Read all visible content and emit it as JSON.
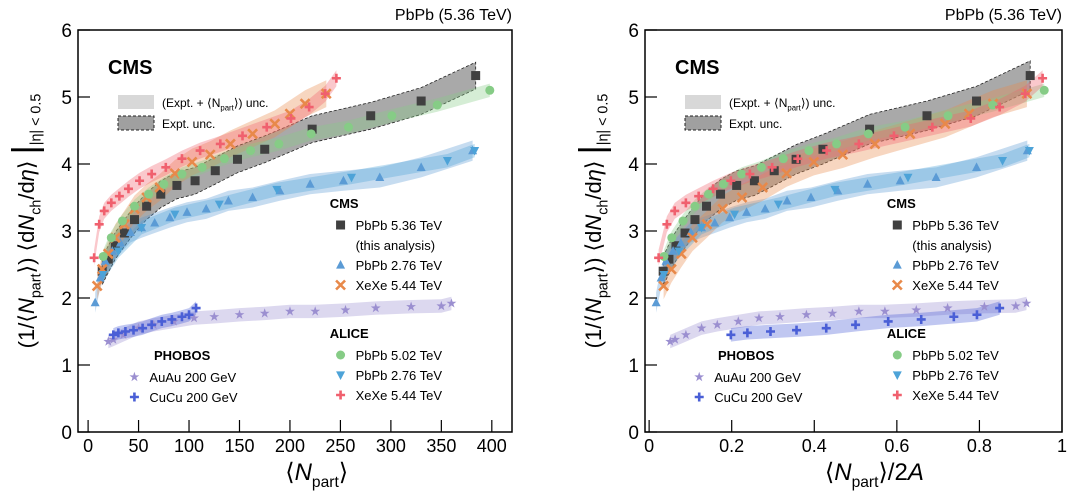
{
  "chart_data": [
    {
      "type": "scatter",
      "title": "PbPb (5.36 TeV)",
      "label": "CMS",
      "xlabel": [
        {
          "t": "⟨"
        },
        {
          "t": "N",
          "style": "italic"
        },
        {
          "t": "part",
          "style": "sub"
        },
        {
          "t": "⟩"
        }
      ],
      "ylabel": [
        {
          "t": "(1/⟨"
        },
        {
          "t": "N",
          "style": "italic"
        },
        {
          "t": "part",
          "style": "sub"
        },
        {
          "t": "⟩) ⟨d"
        },
        {
          "t": "N",
          "style": "italic"
        },
        {
          "t": "ch",
          "style": "sub"
        },
        {
          "t": "/d"
        },
        {
          "t": "η",
          "style": "italic"
        },
        {
          "t": "⟩ "
        },
        {
          "t": "|",
          "style": "big"
        },
        {
          "t": "|η| < 0.5",
          "style": "sub"
        }
      ],
      "band_legend": [
        [
          {
            "t": "(Expt. + ⟨N"
          },
          {
            "t": "part",
            "style": "sub"
          },
          {
            "t": "⟩) unc."
          }
        ],
        [
          {
            "t": "Expt. unc."
          }
        ]
      ],
      "xlim": [
        -10,
        420
      ],
      "xticks": [
        0,
        50,
        100,
        150,
        200,
        250,
        300,
        350,
        400
      ],
      "ylim": [
        0,
        6
      ],
      "yticks": [
        0,
        1,
        2,
        3,
        4,
        5,
        6
      ],
      "series": [
        {
          "name": "PbPb 5.36 TeV",
          "note": "(this analysis)",
          "experiment": "CMS",
          "marker": "square",
          "color": "#404040",
          "uncertainty": 0.2,
          "x": [
            14,
            20,
            27,
            36,
            46,
            58,
            72,
            88,
            106,
            126,
            148,
            175,
            222,
            280,
            330,
            384
          ],
          "values": [
            2.4,
            2.58,
            2.78,
            2.97,
            3.17,
            3.37,
            3.55,
            3.68,
            3.75,
            3.9,
            4.07,
            4.22,
            4.52,
            4.72,
            4.94,
            5.32
          ]
        },
        {
          "name": "PbPb 2.76 TeV",
          "experiment": "CMS",
          "marker": "triangle-up",
          "color": "#5b9bd5",
          "uncertainty": 0.15,
          "x": [
            7,
            12,
            17,
            24,
            32,
            42,
            53,
            66,
            81,
            98,
            117,
            139,
            163,
            190,
            220,
            253,
            289,
            330,
            381
          ],
          "values": [
            1.93,
            2.3,
            2.55,
            2.7,
            2.82,
            2.98,
            3.05,
            3.12,
            3.2,
            3.28,
            3.33,
            3.45,
            3.5,
            3.6,
            3.7,
            3.75,
            3.8,
            3.95,
            4.2
          ]
        },
        {
          "name": "XeXe 5.44 TeV",
          "experiment": "CMS",
          "marker": "x",
          "color": "#e8894a",
          "uncertainty": 0.2,
          "x": [
            9,
            14,
            20,
            27,
            36,
            46,
            58,
            71,
            86,
            103,
            121,
            141,
            163,
            185,
            200,
            215,
            236
          ],
          "values": [
            2.18,
            2.43,
            2.66,
            2.9,
            3.1,
            3.33,
            3.5,
            3.65,
            3.86,
            4.03,
            4.14,
            4.3,
            4.45,
            4.6,
            4.75,
            4.9,
            5.05
          ]
        },
        {
          "name": "PbPb 5.02 TeV",
          "experiment": "ALICE",
          "marker": "circle",
          "color": "#86cc86",
          "uncertainty": 0.1,
          "x": [
            15,
            23,
            34,
            46,
            60,
            75,
            93,
            113,
            135,
            161,
            189,
            221,
            258,
            301,
            346,
            398
          ],
          "values": [
            2.62,
            2.9,
            3.15,
            3.37,
            3.55,
            3.7,
            3.85,
            3.95,
            4.08,
            4.2,
            4.3,
            4.45,
            4.55,
            4.72,
            4.88,
            5.1
          ]
        },
        {
          "name": "PbPb 2.76 TeV",
          "experiment": "ALICE",
          "marker": "triangle-down",
          "color": "#4da3d8",
          "uncertainty": 0.1,
          "x": [
            15,
            30,
            53,
            86,
            130,
            187,
            261,
            356,
            383
          ],
          "values": [
            2.35,
            2.7,
            3.05,
            3.25,
            3.4,
            3.62,
            3.8,
            4.05,
            4.2
          ]
        },
        {
          "name": "XeXe 5.44 TeV",
          "experiment": "ALICE",
          "marker": "plus",
          "color": "#f0606e",
          "uncertainty": 0.12,
          "x": [
            6,
            11,
            16,
            23,
            31,
            40,
            51,
            63,
            77,
            93,
            111,
            131,
            153,
            177,
            201,
            219,
            235,
            246
          ],
          "values": [
            2.6,
            3.1,
            3.3,
            3.42,
            3.52,
            3.63,
            3.75,
            3.85,
            3.95,
            4.08,
            4.2,
            4.3,
            4.42,
            4.55,
            4.68,
            4.85,
            5.05,
            5.28
          ]
        },
        {
          "name": "AuAu 200 GeV",
          "experiment": "PHOBOS",
          "marker": "star",
          "color": "#9b8fd0",
          "uncertainty": 0.1,
          "x": [
            20,
            25,
            35,
            50,
            65,
            85,
            105,
            125,
            150,
            175,
            200,
            225,
            255,
            285,
            320,
            350,
            360
          ],
          "values": [
            1.35,
            1.38,
            1.45,
            1.55,
            1.6,
            1.65,
            1.7,
            1.72,
            1.75,
            1.77,
            1.8,
            1.8,
            1.82,
            1.85,
            1.87,
            1.88,
            1.92
          ]
        },
        {
          "name": "CuCu 200 GeV",
          "experiment": "PHOBOS",
          "marker": "plus",
          "color": "#4a5fd6",
          "uncertainty": 0.1,
          "x": [
            25,
            30,
            37,
            45,
            54,
            63,
            73,
            83,
            93,
            100,
            107
          ],
          "values": [
            1.45,
            1.48,
            1.5,
            1.52,
            1.55,
            1.6,
            1.65,
            1.68,
            1.72,
            1.75,
            1.85
          ]
        }
      ]
    },
    {
      "type": "scatter",
      "title": "PbPb (5.36 TeV)",
      "label": "CMS",
      "xlabel": [
        {
          "t": "⟨"
        },
        {
          "t": "N",
          "style": "italic"
        },
        {
          "t": "part",
          "style": "sub"
        },
        {
          "t": "⟩/2"
        },
        {
          "t": "A",
          "style": "italic"
        }
      ],
      "ylabel": [
        {
          "t": "(1/⟨"
        },
        {
          "t": "N",
          "style": "italic"
        },
        {
          "t": "part",
          "style": "sub"
        },
        {
          "t": "⟩) ⟨d"
        },
        {
          "t": "N",
          "style": "italic"
        },
        {
          "t": "ch",
          "style": "sub"
        },
        {
          "t": "/d"
        },
        {
          "t": "η",
          "style": "italic"
        },
        {
          "t": "⟩ "
        },
        {
          "t": "|",
          "style": "big"
        },
        {
          "t": "|η| < 0.5",
          "style": "sub"
        }
      ],
      "band_legend": [
        [
          {
            "t": "(Expt. + ⟨N"
          },
          {
            "t": "part",
            "style": "sub"
          },
          {
            "t": "⟩) unc."
          }
        ],
        [
          {
            "t": "Expt. unc."
          }
        ]
      ],
      "xlim": [
        -0.01,
        1
      ],
      "xticks": [
        0,
        0.2,
        0.4,
        0.6,
        0.8,
        1
      ],
      "ylim": [
        0,
        6
      ],
      "yticks": [
        0,
        1,
        2,
        3,
        4,
        5,
        6
      ],
      "series": [
        {
          "name": "PbPb 5.36 TeV",
          "note": "(this analysis)",
          "experiment": "CMS",
          "marker": "square",
          "color": "#404040",
          "uncertainty": 0.22,
          "x": [
            0.034,
            0.048,
            0.065,
            0.087,
            0.111,
            0.139,
            0.173,
            0.212,
            0.255,
            0.303,
            0.356,
            0.421,
            0.534,
            0.673,
            0.793,
            0.923
          ],
          "values": [
            2.4,
            2.58,
            2.78,
            2.97,
            3.17,
            3.37,
            3.55,
            3.68,
            3.75,
            3.9,
            4.07,
            4.22,
            4.52,
            4.72,
            4.94,
            5.32
          ]
        },
        {
          "name": "PbPb 2.76 TeV",
          "experiment": "CMS",
          "marker": "triangle-up",
          "color": "#5b9bd5",
          "uncertainty": 0.15,
          "x": [
            0.017,
            0.029,
            0.041,
            0.058,
            0.077,
            0.101,
            0.127,
            0.159,
            0.195,
            0.236,
            0.281,
            0.334,
            0.392,
            0.457,
            0.529,
            0.608,
            0.695,
            0.793,
            0.916
          ],
          "values": [
            1.93,
            2.3,
            2.55,
            2.7,
            2.82,
            2.98,
            3.05,
            3.12,
            3.2,
            3.28,
            3.33,
            3.45,
            3.5,
            3.6,
            3.7,
            3.75,
            3.8,
            3.95,
            4.2
          ]
        },
        {
          "name": "XeXe 5.44 TeV",
          "experiment": "CMS",
          "marker": "x",
          "color": "#e8894a",
          "uncertainty": 0.2,
          "x": [
            0.035,
            0.054,
            0.078,
            0.105,
            0.14,
            0.178,
            0.225,
            0.275,
            0.333,
            0.399,
            0.469,
            0.547,
            0.632,
            0.717,
            0.775,
            0.833,
            0.915
          ],
          "values": [
            2.18,
            2.43,
            2.66,
            2.9,
            3.1,
            3.33,
            3.5,
            3.65,
            3.86,
            4.03,
            4.14,
            4.3,
            4.45,
            4.6,
            4.75,
            4.9,
            5.05
          ]
        },
        {
          "name": "PbPb 5.02 TeV",
          "experiment": "ALICE",
          "marker": "circle",
          "color": "#86cc86",
          "uncertainty": 0.1,
          "x": [
            0.036,
            0.055,
            0.082,
            0.111,
            0.144,
            0.18,
            0.224,
            0.272,
            0.325,
            0.387,
            0.454,
            0.531,
            0.62,
            0.724,
            0.832,
            0.957
          ],
          "values": [
            2.62,
            2.9,
            3.15,
            3.37,
            3.55,
            3.7,
            3.85,
            3.95,
            4.08,
            4.2,
            4.3,
            4.45,
            4.55,
            4.72,
            4.88,
            5.1
          ]
        },
        {
          "name": "PbPb 2.76 TeV",
          "experiment": "ALICE",
          "marker": "triangle-down",
          "color": "#4da3d8",
          "uncertainty": 0.1,
          "x": [
            0.036,
            0.072,
            0.127,
            0.207,
            0.313,
            0.45,
            0.627,
            0.856,
            0.921
          ],
          "values": [
            2.35,
            2.7,
            3.05,
            3.25,
            3.4,
            3.62,
            3.8,
            4.05,
            4.2
          ]
        },
        {
          "name": "XeXe 5.44 TeV",
          "experiment": "ALICE",
          "marker": "plus",
          "color": "#f0606e",
          "uncertainty": 0.12,
          "x": [
            0.023,
            0.043,
            0.062,
            0.089,
            0.12,
            0.155,
            0.198,
            0.244,
            0.298,
            0.36,
            0.43,
            0.508,
            0.593,
            0.686,
            0.779,
            0.849,
            0.911,
            0.953
          ],
          "values": [
            2.6,
            3.1,
            3.3,
            3.42,
            3.52,
            3.63,
            3.75,
            3.85,
            3.95,
            4.08,
            4.2,
            4.3,
            4.42,
            4.55,
            4.68,
            4.85,
            5.05,
            5.28
          ]
        },
        {
          "name": "AuAu 200 GeV",
          "experiment": "PHOBOS",
          "marker": "star",
          "color": "#9b8fd0",
          "uncertainty": 0.1,
          "x": [
            0.051,
            0.063,
            0.089,
            0.127,
            0.165,
            0.216,
            0.266,
            0.317,
            0.381,
            0.444,
            0.508,
            0.571,
            0.647,
            0.723,
            0.812,
            0.888,
            0.914
          ],
          "values": [
            1.35,
            1.38,
            1.45,
            1.55,
            1.6,
            1.65,
            1.7,
            1.72,
            1.75,
            1.77,
            1.8,
            1.8,
            1.82,
            1.85,
            1.87,
            1.88,
            1.92
          ]
        },
        {
          "name": "CuCu 200 GeV",
          "experiment": "PHOBOS",
          "marker": "plus",
          "color": "#4a5fd6",
          "uncertainty": 0.1,
          "x": [
            0.198,
            0.238,
            0.294,
            0.357,
            0.429,
            0.5,
            0.579,
            0.659,
            0.738,
            0.794,
            0.849
          ],
          "values": [
            1.45,
            1.48,
            1.5,
            1.52,
            1.55,
            1.6,
            1.65,
            1.68,
            1.72,
            1.75,
            1.85
          ]
        }
      ]
    }
  ]
}
